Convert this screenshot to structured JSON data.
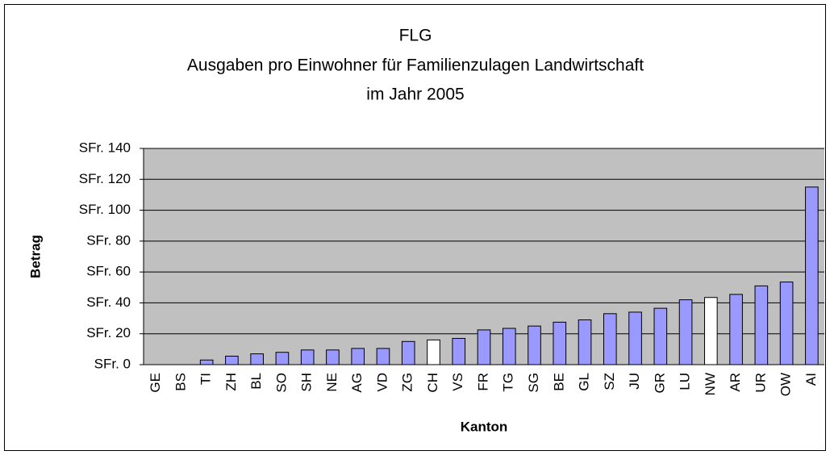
{
  "chart_data": {
    "type": "bar",
    "title": "FLG",
    "subtitle": [
      "Ausgaben pro Einwohner für Familienzulagen Landwirtschaft",
      "im Jahr 2005"
    ],
    "x_label": "Kanton",
    "y_label": "Betrag",
    "categories": [
      "GE",
      "BS",
      "TI",
      "ZH",
      "BL",
      "SO",
      "SH",
      "NE",
      "AG",
      "VD",
      "ZG",
      "CH",
      "VS",
      "FR",
      "TG",
      "SG",
      "BE",
      "GL",
      "SZ",
      "JU",
      "GR",
      "LU",
      "NW",
      "AR",
      "UR",
      "OW",
      "AI"
    ],
    "values": [
      0,
      0,
      3,
      5.5,
      7,
      8,
      9.5,
      9.5,
      10.5,
      10.5,
      15,
      16,
      17,
      22.5,
      23.5,
      25,
      27.5,
      29,
      33,
      34,
      36.5,
      42,
      43.5,
      45.5,
      51,
      53.5,
      115
    ],
    "colors": [
      "#9999ff",
      "#9999ff",
      "#9999ff",
      "#9999ff",
      "#9999ff",
      "#9999ff",
      "#9999ff",
      "#9999ff",
      "#9999ff",
      "#9999ff",
      "#9999ff",
      "#ffffff",
      "#9999ff",
      "#9999ff",
      "#9999ff",
      "#9999ff",
      "#9999ff",
      "#9999ff",
      "#9999ff",
      "#9999ff",
      "#9999ff",
      "#9999ff",
      "#ffffff",
      "#9999ff",
      "#9999ff",
      "#9999ff",
      "#9999ff"
    ],
    "ylim": [
      0,
      140
    ],
    "yticks": [
      {
        "value": 0,
        "label": "SFr. 0"
      },
      {
        "value": 20,
        "label": "SFr. 20"
      },
      {
        "value": 40,
        "label": "SFr. 40"
      },
      {
        "value": 60,
        "label": "SFr. 60"
      },
      {
        "value": 80,
        "label": "SFr. 80"
      },
      {
        "value": 100,
        "label": "SFr. 100"
      },
      {
        "value": 120,
        "label": "SFr. 120"
      },
      {
        "value": 140,
        "label": "SFr. 140"
      }
    ],
    "grid": true
  }
}
